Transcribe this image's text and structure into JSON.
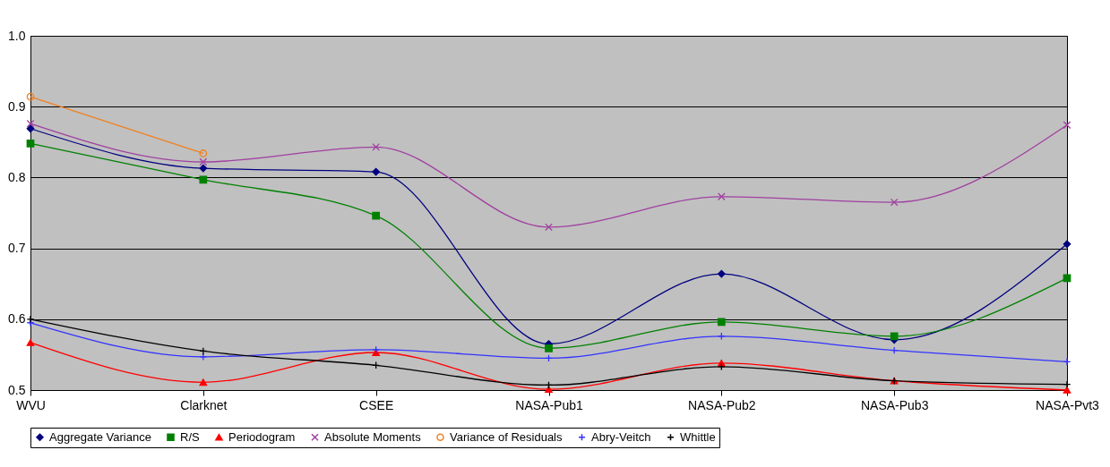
{
  "chart_data": {
    "type": "line",
    "categories": [
      "WVU",
      "Clarknet",
      "CSEE",
      "NASA-Pub1",
      "NASA-Pub2",
      "NASA-Pub3",
      "NASA-Pvt3"
    ],
    "series": [
      {
        "name": "Aggregate Variance",
        "color": "#000080",
        "marker": "diamond",
        "values": [
          0.869,
          0.813,
          0.808,
          0.565,
          0.664,
          0.571,
          0.706
        ]
      },
      {
        "name": "R/S",
        "color": "#008000",
        "marker": "square",
        "values": [
          0.848,
          0.797,
          0.746,
          0.559,
          0.596,
          0.576,
          0.658
        ]
      },
      {
        "name": "Periodogram",
        "color": "#ff0000",
        "marker": "triangle",
        "values": [
          0.567,
          0.511,
          0.553,
          0.501,
          0.538,
          0.513,
          0.5
        ]
      },
      {
        "name": "Absolute Moments",
        "color": "#a040a0",
        "marker": "cross",
        "values": [
          0.876,
          0.822,
          0.843,
          0.73,
          0.773,
          0.765,
          0.874
        ]
      },
      {
        "name": "Variance of Residuals",
        "color": "#f08020",
        "marker": "circle",
        "values": [
          0.914,
          0.834,
          null,
          null,
          null,
          null,
          null
        ]
      },
      {
        "name": "Abry-Veitch",
        "color": "#3333ff",
        "marker": "plus",
        "values": [
          0.595,
          0.547,
          0.557,
          0.545,
          0.576,
          0.556,
          0.54
        ]
      },
      {
        "name": "Whittle",
        "color": "#000000",
        "marker": "plus",
        "values": [
          0.6,
          0.555,
          0.535,
          0.507,
          0.533,
          0.513,
          0.508
        ]
      }
    ],
    "ylim": [
      0.5,
      1
    ],
    "yticks": [
      0.5,
      0.6,
      0.7,
      0.8,
      0.9,
      {
        "value": 1,
        "label": "1.0"
      }
    ],
    "grid": "y",
    "legend": "bottom"
  }
}
